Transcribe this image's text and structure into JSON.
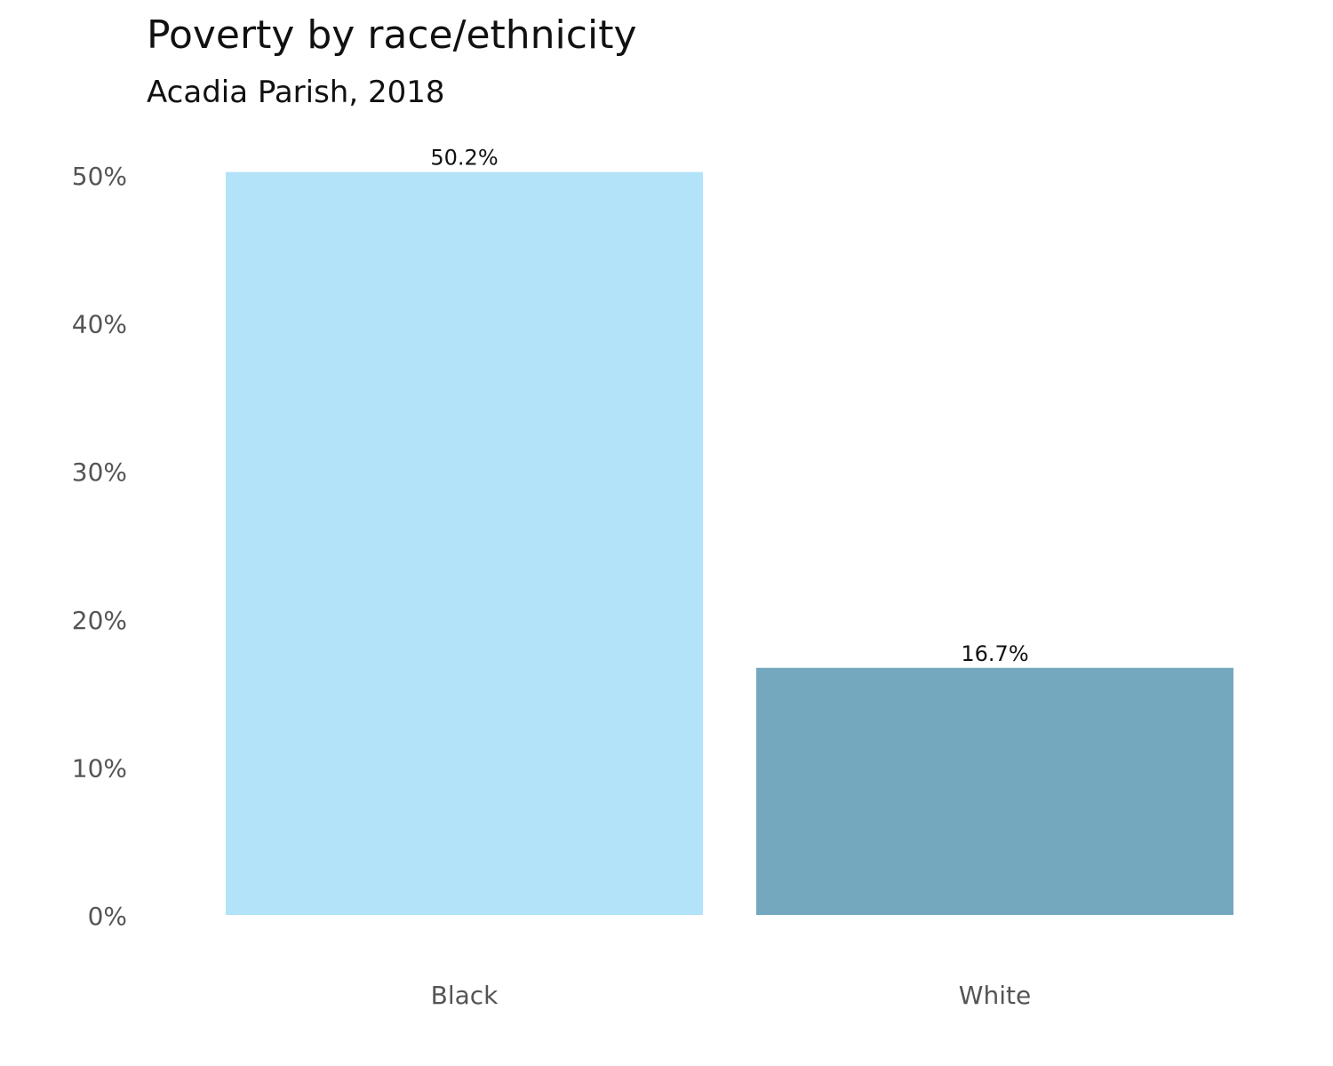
{
  "chart_data": {
    "type": "bar",
    "title": "Poverty by race/ethnicity",
    "subtitle": "Acadia Parish, 2018",
    "xlabel": "",
    "ylabel": "",
    "categories": [
      "Black",
      "White"
    ],
    "values": [
      50.2,
      16.7
    ],
    "data_labels": [
      "50.2%",
      "16.7%"
    ],
    "colors": [
      "#b3e3f9",
      "#74a8bf"
    ],
    "ylim": [
      0,
      50.2
    ],
    "yticks": [
      0,
      10,
      20,
      30,
      40,
      50
    ],
    "ytick_labels": [
      "0%",
      "10%",
      "20%",
      "30%",
      "40%",
      "50%"
    ],
    "grid": false,
    "legend": "none"
  }
}
